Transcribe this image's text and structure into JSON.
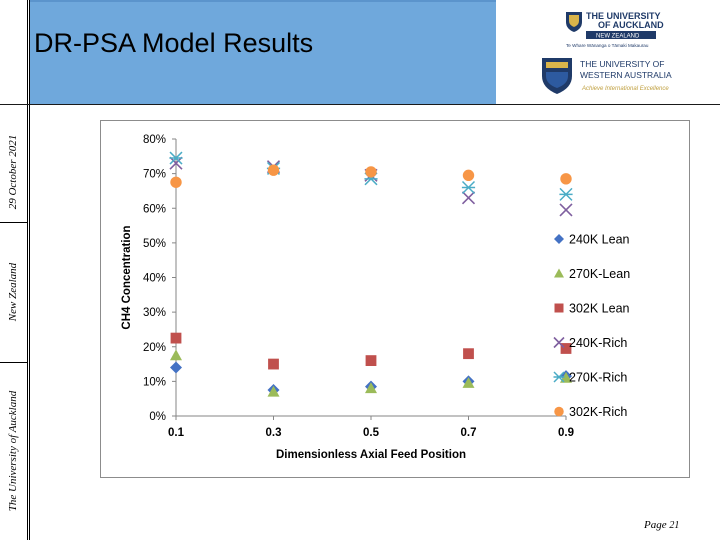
{
  "slide": {
    "title": "DR-PSA Model Results",
    "page_label": "Page",
    "page_number": "21",
    "side_text": {
      "date": "29 October 2021",
      "country": "New Zealand",
      "university": "The University of Auckland"
    },
    "header_color": "#6fa8dc"
  },
  "logos": {
    "auckland": {
      "line1": "THE UNIVERSITY",
      "line2": "OF AUCKLAND",
      "band": "NEW ZEALAND",
      "tagline": "Te Whare Wānanga o Tāmaki Makaurau"
    },
    "uwa": {
      "line1": "THE UNIVERSITY OF",
      "line2": "WESTERN AUSTRALIA",
      "tagline": "Achieve International Excellence"
    }
  },
  "chart_data": {
    "type": "scatter",
    "xlabel": "Dimensionless Axial Feed Position",
    "ylabel": "CH4 Concentration",
    "x_ticks": [
      "0.1",
      "0.3",
      "0.5",
      "0.7",
      "0.9"
    ],
    "y_ticks": [
      "0%",
      "10%",
      "20%",
      "30%",
      "40%",
      "50%",
      "60%",
      "70%",
      "80%"
    ],
    "ylim": [
      0,
      0.8
    ],
    "grid": false,
    "legend_position": "right",
    "series": [
      {
        "name": "240K Lean",
        "marker": "diamond",
        "color": "#4472c4",
        "points": [
          [
            0.1,
            0.14
          ],
          [
            0.3,
            0.075
          ],
          [
            0.5,
            0.085
          ],
          [
            0.7,
            0.1
          ],
          [
            0.9,
            0.115
          ]
        ]
      },
      {
        "name": "270K-Lean",
        "marker": "triangle",
        "color": "#9bbb59",
        "points": [
          [
            0.1,
            0.175
          ],
          [
            0.3,
            0.07
          ],
          [
            0.5,
            0.08
          ],
          [
            0.7,
            0.095
          ],
          [
            0.9,
            0.11
          ]
        ]
      },
      {
        "name": "302K Lean",
        "marker": "square",
        "color": "#c0504d",
        "points": [
          [
            0.1,
            0.225
          ],
          [
            0.3,
            0.15
          ],
          [
            0.5,
            0.16
          ],
          [
            0.7,
            0.18
          ],
          [
            0.9,
            0.195
          ]
        ]
      },
      {
        "name": "240K-Rich",
        "marker": "x",
        "color": "#7f5f9f",
        "points": [
          [
            0.1,
            0.73
          ],
          [
            0.3,
            0.72
          ],
          [
            0.5,
            0.695
          ],
          [
            0.7,
            0.63
          ],
          [
            0.9,
            0.595
          ]
        ]
      },
      {
        "name": "270K-Rich",
        "marker": "star",
        "color": "#4bacc6",
        "points": [
          [
            0.1,
            0.745
          ],
          [
            0.3,
            0.715
          ],
          [
            0.5,
            0.685
          ],
          [
            0.7,
            0.66
          ],
          [
            0.9,
            0.64
          ]
        ]
      },
      {
        "name": "302K-Rich",
        "marker": "circle",
        "color": "#f79646",
        "points": [
          [
            0.1,
            0.675
          ],
          [
            0.3,
            0.71
          ],
          [
            0.5,
            0.705
          ],
          [
            0.7,
            0.695
          ],
          [
            0.9,
            0.685
          ]
        ]
      }
    ]
  }
}
